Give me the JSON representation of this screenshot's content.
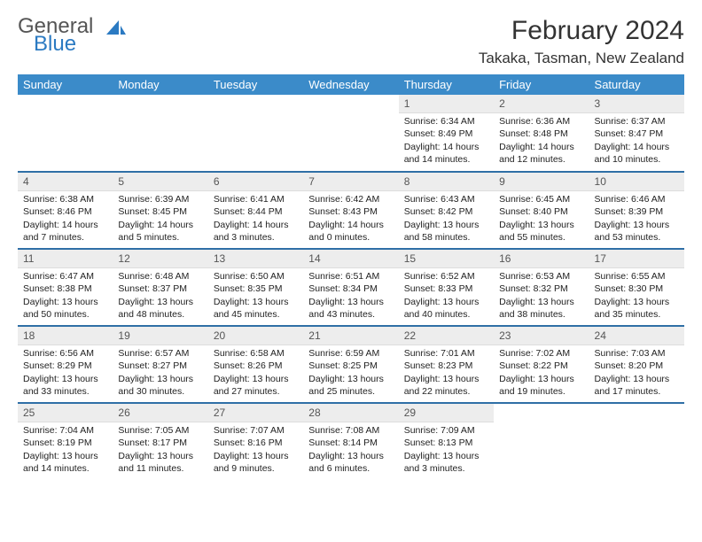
{
  "brand": {
    "part1": "General",
    "part2": "Blue"
  },
  "title": "February 2024",
  "location": "Takaka, Tasman, New Zealand",
  "colors": {
    "header_bg": "#3b8bc9",
    "header_text": "#ffffff",
    "daynum_bg": "#ededed",
    "row_border": "#2f6fa6",
    "brand_blue": "#2b7ac2"
  },
  "weekdays": [
    "Sunday",
    "Monday",
    "Tuesday",
    "Wednesday",
    "Thursday",
    "Friday",
    "Saturday"
  ],
  "weeks": [
    [
      null,
      null,
      null,
      null,
      {
        "n": "1",
        "sr": "6:34 AM",
        "ss": "8:49 PM",
        "dl": "14 hours and 14 minutes."
      },
      {
        "n": "2",
        "sr": "6:36 AM",
        "ss": "8:48 PM",
        "dl": "14 hours and 12 minutes."
      },
      {
        "n": "3",
        "sr": "6:37 AM",
        "ss": "8:47 PM",
        "dl": "14 hours and 10 minutes."
      }
    ],
    [
      {
        "n": "4",
        "sr": "6:38 AM",
        "ss": "8:46 PM",
        "dl": "14 hours and 7 minutes."
      },
      {
        "n": "5",
        "sr": "6:39 AM",
        "ss": "8:45 PM",
        "dl": "14 hours and 5 minutes."
      },
      {
        "n": "6",
        "sr": "6:41 AM",
        "ss": "8:44 PM",
        "dl": "14 hours and 3 minutes."
      },
      {
        "n": "7",
        "sr": "6:42 AM",
        "ss": "8:43 PM",
        "dl": "14 hours and 0 minutes."
      },
      {
        "n": "8",
        "sr": "6:43 AM",
        "ss": "8:42 PM",
        "dl": "13 hours and 58 minutes."
      },
      {
        "n": "9",
        "sr": "6:45 AM",
        "ss": "8:40 PM",
        "dl": "13 hours and 55 minutes."
      },
      {
        "n": "10",
        "sr": "6:46 AM",
        "ss": "8:39 PM",
        "dl": "13 hours and 53 minutes."
      }
    ],
    [
      {
        "n": "11",
        "sr": "6:47 AM",
        "ss": "8:38 PM",
        "dl": "13 hours and 50 minutes."
      },
      {
        "n": "12",
        "sr": "6:48 AM",
        "ss": "8:37 PM",
        "dl": "13 hours and 48 minutes."
      },
      {
        "n": "13",
        "sr": "6:50 AM",
        "ss": "8:35 PM",
        "dl": "13 hours and 45 minutes."
      },
      {
        "n": "14",
        "sr": "6:51 AM",
        "ss": "8:34 PM",
        "dl": "13 hours and 43 minutes."
      },
      {
        "n": "15",
        "sr": "6:52 AM",
        "ss": "8:33 PM",
        "dl": "13 hours and 40 minutes."
      },
      {
        "n": "16",
        "sr": "6:53 AM",
        "ss": "8:32 PM",
        "dl": "13 hours and 38 minutes."
      },
      {
        "n": "17",
        "sr": "6:55 AM",
        "ss": "8:30 PM",
        "dl": "13 hours and 35 minutes."
      }
    ],
    [
      {
        "n": "18",
        "sr": "6:56 AM",
        "ss": "8:29 PM",
        "dl": "13 hours and 33 minutes."
      },
      {
        "n": "19",
        "sr": "6:57 AM",
        "ss": "8:27 PM",
        "dl": "13 hours and 30 minutes."
      },
      {
        "n": "20",
        "sr": "6:58 AM",
        "ss": "8:26 PM",
        "dl": "13 hours and 27 minutes."
      },
      {
        "n": "21",
        "sr": "6:59 AM",
        "ss": "8:25 PM",
        "dl": "13 hours and 25 minutes."
      },
      {
        "n": "22",
        "sr": "7:01 AM",
        "ss": "8:23 PM",
        "dl": "13 hours and 22 minutes."
      },
      {
        "n": "23",
        "sr": "7:02 AM",
        "ss": "8:22 PM",
        "dl": "13 hours and 19 minutes."
      },
      {
        "n": "24",
        "sr": "7:03 AM",
        "ss": "8:20 PM",
        "dl": "13 hours and 17 minutes."
      }
    ],
    [
      {
        "n": "25",
        "sr": "7:04 AM",
        "ss": "8:19 PM",
        "dl": "13 hours and 14 minutes."
      },
      {
        "n": "26",
        "sr": "7:05 AM",
        "ss": "8:17 PM",
        "dl": "13 hours and 11 minutes."
      },
      {
        "n": "27",
        "sr": "7:07 AM",
        "ss": "8:16 PM",
        "dl": "13 hours and 9 minutes."
      },
      {
        "n": "28",
        "sr": "7:08 AM",
        "ss": "8:14 PM",
        "dl": "13 hours and 6 minutes."
      },
      {
        "n": "29",
        "sr": "7:09 AM",
        "ss": "8:13 PM",
        "dl": "13 hours and 3 minutes."
      },
      null,
      null
    ]
  ],
  "labels": {
    "sunrise": "Sunrise:",
    "sunset": "Sunset:",
    "daylight": "Daylight:"
  }
}
